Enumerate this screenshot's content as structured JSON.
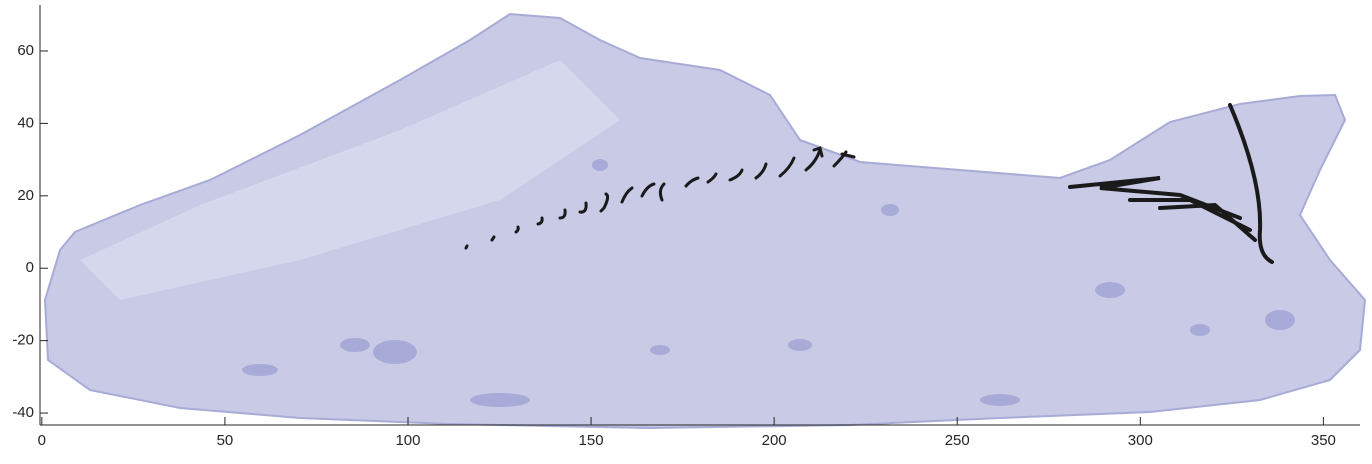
{
  "chart_data": {
    "type": "surface",
    "xlim": [
      -0.5,
      360
    ],
    "ylim": [
      -43.3,
      72.7
    ],
    "xticks": [
      0,
      50,
      100,
      150,
      200,
      250,
      300,
      350
    ],
    "yticks": [
      -40,
      -20,
      0,
      20,
      40,
      60
    ]
  }
}
